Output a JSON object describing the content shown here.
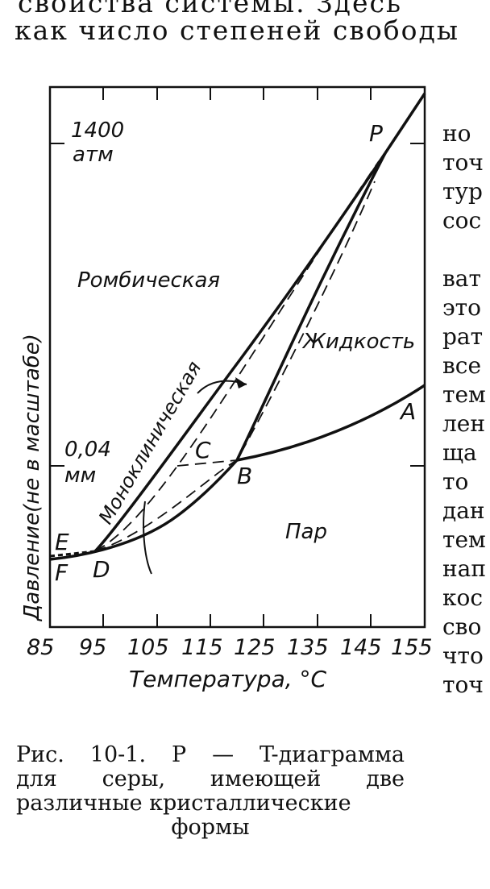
{
  "text": {
    "top_cut": "свойства  системы.  Здесь",
    "top_line": "как  число  степеней  свободы",
    "caption": {
      "line1": "Рис.  10-1.  P — T-диаграмма",
      "line2": "для  серы,  имеющей  две",
      "line3": "различные кристаллические",
      "line4": "формы"
    },
    "side_fragments": [
      "но",
      "точ",
      "тур",
      "сос",
      "",
      "ват",
      "это",
      "рат",
      "все",
      "тем",
      "лен",
      "ща",
      "то",
      "дан",
      "тем",
      "нап",
      "кос",
      "сво",
      "что",
      "точ"
    ]
  },
  "diagram": {
    "pressure_label_high": "1400",
    "pressure_unit_high": "атм",
    "pressure_label_low": "0,04",
    "pressure_unit_low": "мм",
    "region_rhombic": "Ромбическая",
    "region_monoclinic": "Моноклиническая",
    "region_liquid": "Жидкость",
    "region_vapor": "Пар",
    "point_P": "P",
    "point_A": "A",
    "point_B": "B",
    "point_C": "C",
    "point_D": "D",
    "point_E": "E",
    "point_F": "F",
    "y_axis_label": "Давление(не в масштабе)",
    "x_axis_label": "Температура, °С",
    "x_ticks": [
      "85",
      "95",
      "105",
      "115",
      "125",
      "135",
      "145",
      "155"
    ]
  }
}
